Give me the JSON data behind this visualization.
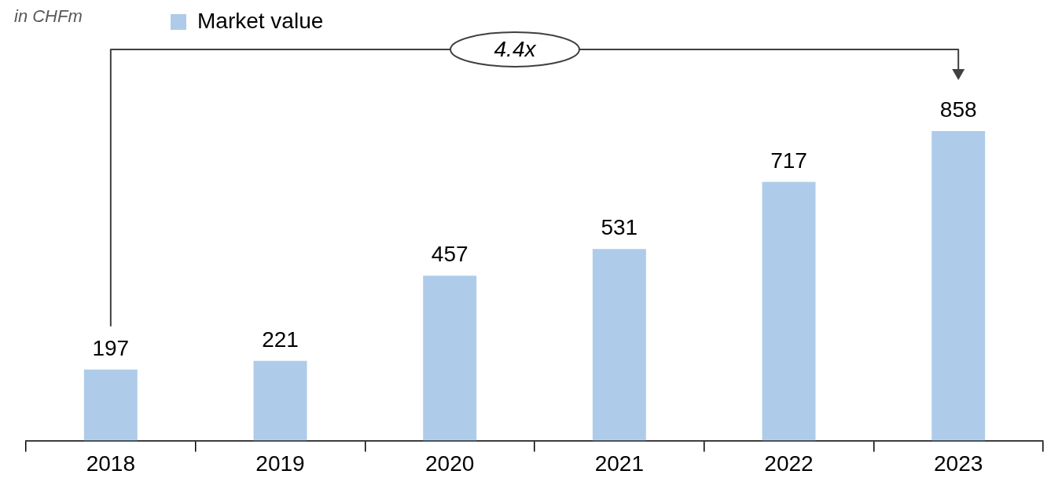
{
  "chart_data": {
    "type": "bar",
    "subtitle": "in CHFm",
    "categories": [
      "2018",
      "2019",
      "2020",
      "2021",
      "2022",
      "2023"
    ],
    "series": [
      {
        "name": "Market value",
        "color": "#aecce9",
        "values": [
          197,
          221,
          457,
          531,
          717,
          858
        ]
      }
    ],
    "data_labels": true,
    "legend": "top left",
    "grid": false,
    "tick_labels": "x",
    "annotations": [
      "4.4x"
    ]
  }
}
